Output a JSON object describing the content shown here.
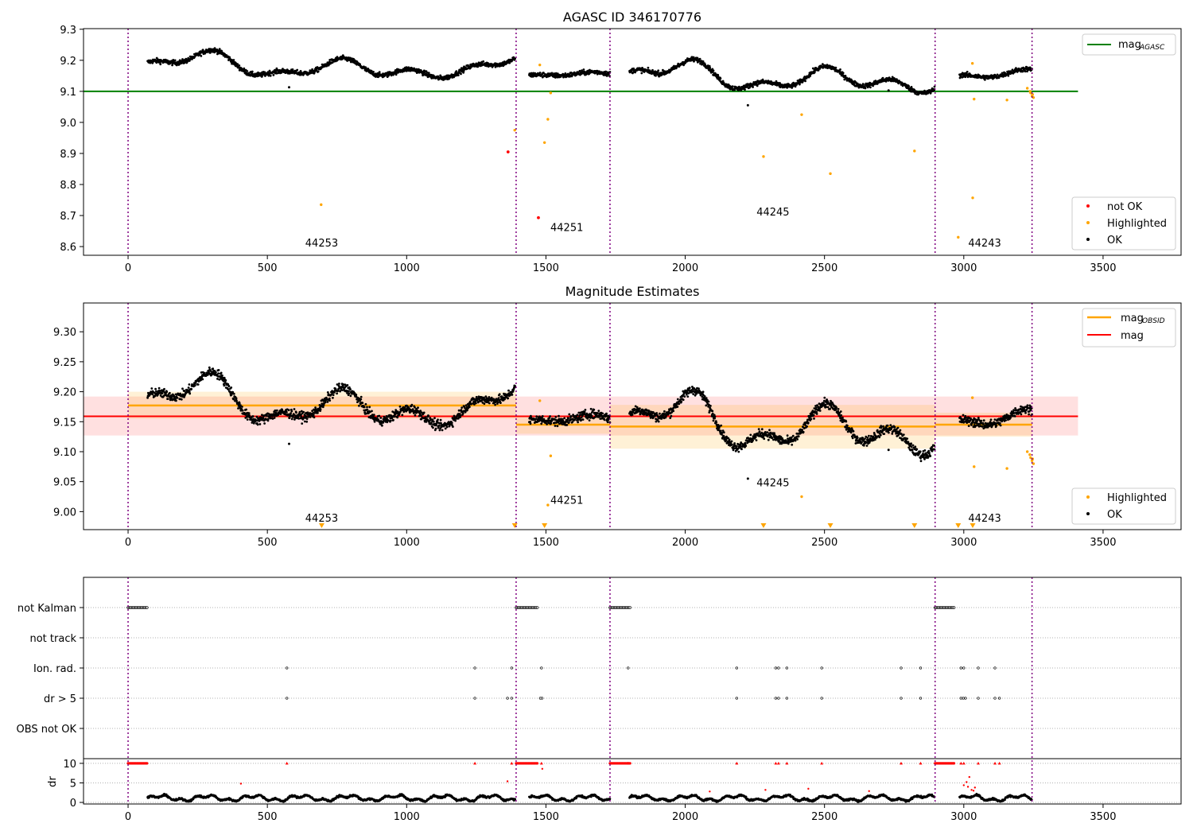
{
  "chart_data": [
    {
      "type": "scatter",
      "title": "AGASC ID 346170776",
      "xlim": [
        -160,
        3780
      ],
      "ylim": [
        8.572,
        9.302
      ],
      "xticks": [
        0,
        500,
        1000,
        1500,
        2000,
        2500,
        3000,
        3500
      ],
      "yticks": [
        8.6,
        8.7,
        8.8,
        8.9,
        9.0,
        9.1,
        9.2,
        9.3
      ],
      "grid": false,
      "legend_upper": {
        "placement": "top-right",
        "entries": [
          {
            "name": "mag",
            "sub": "AGASC",
            "color": "#008000"
          }
        ]
      },
      "legend_lower": {
        "placement": "bottom-right",
        "entries": [
          {
            "name": "not OK",
            "color": "#ff0000"
          },
          {
            "name": "Highlighted",
            "color": "#ffa500"
          },
          {
            "name": "OK",
            "color": "#000000"
          }
        ]
      },
      "hline": {
        "y": 9.1,
        "x": [
          -160,
          3410
        ],
        "color": "#008000"
      },
      "obsid_boundaries": [
        0,
        1393,
        1730,
        2897,
        3245
      ],
      "obsid_labels": [
        {
          "text": "44253",
          "x": 695,
          "y": 8.6
        },
        {
          "text": "44251",
          "x": 1575,
          "y": 8.65
        },
        {
          "text": "44245",
          "x": 2315,
          "y": 8.7
        },
        {
          "text": "44243",
          "x": 3075,
          "y": 8.6
        }
      ],
      "ok_segments": [
        {
          "x": [
            70,
            1390
          ],
          "mean": 9.178,
          "wave": [
            0.04,
            0.03,
            0.032,
            0.025
          ]
        },
        {
          "x": [
            1440,
            1730
          ],
          "mean": 9.147,
          "wave": [
            0.012,
            0.01,
            0.008,
            0.006
          ]
        },
        {
          "x": [
            1800,
            2895
          ],
          "mean": 9.142,
          "wave": [
            0.05,
            0.04,
            0.03,
            0.02
          ]
        },
        {
          "x": [
            2985,
            3245
          ],
          "mean": 9.148,
          "wave": [
            0.012,
            0.015,
            0.008,
            0.02
          ]
        }
      ],
      "ok_outliers": [
        [
          578,
          9.113
        ],
        [
          2225,
          9.055
        ],
        [
          2730,
          9.103
        ]
      ],
      "not_ok_points": [
        [
          1364,
          8.905
        ],
        [
          1473,
          8.693
        ]
      ],
      "highlighted_points": [
        [
          693,
          8.735
        ],
        [
          1388,
          8.975
        ],
        [
          1478,
          9.185
        ],
        [
          1495,
          8.935
        ],
        [
          1507,
          9.01
        ],
        [
          1517,
          9.095
        ],
        [
          2281,
          8.89
        ],
        [
          2418,
          9.025
        ],
        [
          2521,
          8.835
        ],
        [
          2823,
          8.908
        ],
        [
          2980,
          8.63
        ],
        [
          3032,
          8.757
        ],
        [
          3037,
          9.075
        ],
        [
          3031,
          9.19
        ],
        [
          3155,
          9.072
        ],
        [
          3228,
          9.11
        ],
        [
          3240,
          9.095
        ],
        [
          3245,
          9.085
        ],
        [
          3250,
          9.08
        ],
        [
          3238,
          9.1
        ],
        [
          3247,
          9.09
        ]
      ]
    },
    {
      "type": "scatter",
      "title": "Magnitude Estimates",
      "xlim": [
        -160,
        3780
      ],
      "ylim": [
        8.97,
        9.348
      ],
      "xticks": [
        0,
        500,
        1000,
        1500,
        2000,
        2500,
        3000,
        3500
      ],
      "yticks": [
        9.0,
        9.05,
        9.1,
        9.15,
        9.2,
        9.25,
        9.3
      ],
      "ytick_labels": [
        "9.00",
        "9.05",
        "9.10",
        "9.15",
        "9.20",
        "9.25",
        "9.30"
      ],
      "grid": false,
      "legend_upper": {
        "placement": "top-right",
        "entries": [
          {
            "name": "mag",
            "sub": "OBSID",
            "color": "#ffa500"
          },
          {
            "name": "mag",
            "sub": "",
            "color": "#ff0000"
          }
        ]
      },
      "legend_lower": {
        "placement": "bottom-right",
        "entries": [
          {
            "name": "Highlighted",
            "color": "#ffa500"
          },
          {
            "name": "OK",
            "color": "#000000"
          }
        ]
      },
      "mag": {
        "value": 9.159,
        "band": [
          9.127,
          9.192
        ],
        "x": [
          -160,
          3410
        ],
        "color": "#ff0000"
      },
      "mag_obsid": [
        {
          "x": [
            0,
            1393
          ],
          "value": 9.177,
          "band": [
            9.155,
            9.2
          ]
        },
        {
          "x": [
            1393,
            1730
          ],
          "value": 9.145,
          "band": [
            9.13,
            9.16
          ]
        },
        {
          "x": [
            1730,
            2897
          ],
          "value": 9.142,
          "band": [
            9.105,
            9.178
          ]
        },
        {
          "x": [
            2897,
            3245
          ],
          "value": 9.145,
          "band": [
            9.125,
            9.165
          ]
        }
      ],
      "obsid_boundaries": [
        0,
        1393,
        1730,
        2897,
        3245
      ],
      "obsid_labels": [
        {
          "text": "44253",
          "x": 695,
          "y": 8.983
        },
        {
          "text": "44251",
          "x": 1575,
          "y": 9.013
        },
        {
          "text": "44245",
          "x": 2315,
          "y": 9.042
        },
        {
          "text": "44243",
          "x": 3075,
          "y": 8.983
        }
      ],
      "ok_segments": [
        {
          "x": [
            70,
            1390
          ],
          "mean": 9.178,
          "wave": [
            0.04,
            0.03,
            0.032,
            0.025
          ]
        },
        {
          "x": [
            1440,
            1730
          ],
          "mean": 9.147,
          "wave": [
            0.012,
            0.01,
            0.008,
            0.006
          ]
        },
        {
          "x": [
            1800,
            2895
          ],
          "mean": 9.142,
          "wave": [
            0.05,
            0.04,
            0.03,
            0.02
          ]
        },
        {
          "x": [
            2985,
            3245
          ],
          "mean": 9.148,
          "wave": [
            0.012,
            0.015,
            0.008,
            0.02
          ]
        }
      ],
      "ok_outliers": [
        [
          578,
          9.113
        ],
        [
          2225,
          9.055
        ],
        [
          2730,
          9.103
        ]
      ],
      "highlighted_points": [
        [
          1478,
          9.185
        ],
        [
          1517,
          9.093
        ],
        [
          1507,
          9.011
        ],
        [
          2418,
          9.025
        ],
        [
          3031,
          9.19
        ],
        [
          3037,
          9.075
        ],
        [
          3155,
          9.072
        ],
        [
          3228,
          9.1
        ],
        [
          3240,
          9.09
        ],
        [
          3245,
          9.085
        ],
        [
          3250,
          9.08
        ],
        [
          3237,
          9.095
        ],
        [
          3247,
          9.088
        ]
      ],
      "offscale_markers": [
        695,
        1388,
        1495,
        2281,
        2521,
        2823,
        2980,
        3032
      ]
    },
    {
      "type": "scatter",
      "xlim": [
        -160,
        3780
      ],
      "xticks": [
        0,
        500,
        1000,
        1500,
        2000,
        2500,
        3000,
        3500
      ],
      "flag_rows": [
        "not Kalman",
        "not track",
        "Ion. rad.",
        "dr > 5",
        "OBS not OK"
      ],
      "not_kalman_ranges": [
        [
          0,
          70
        ],
        [
          1393,
          1470
        ],
        [
          1730,
          1805
        ],
        [
          2897,
          2965
        ]
      ],
      "ion_rad_x": [
        570,
        1245,
        1377,
        1484,
        1795,
        2185,
        2325,
        2335,
        2365,
        2490,
        2775,
        2845,
        2990,
        3000,
        3052,
        3112
      ],
      "dr5_x": [
        570,
        1245,
        1362,
        1377,
        1480,
        1486,
        2185,
        2325,
        2335,
        2365,
        2490,
        2775,
        2845,
        2990,
        2998,
        3006,
        3052,
        3112,
        3128
      ],
      "dr": {
        "ylabel": "dr",
        "ylim": [
          -0.4,
          11.2
        ],
        "yticks": [
          0,
          5,
          10
        ],
        "cap": 10,
        "clip_ranges": [
          [
            0,
            70
          ],
          [
            1393,
            1470
          ],
          [
            1730,
            1805
          ],
          [
            2897,
            2965
          ]
        ],
        "clip_points": [
          570,
          1245,
          1377,
          1484,
          1795,
          2185,
          2325,
          2335,
          2365,
          2490,
          2775,
          2845,
          2990,
          3000,
          3052,
          3112,
          3128
        ],
        "red_points": [
          [
            405,
            4.8
          ],
          [
            1362,
            5.4
          ],
          [
            1487,
            8.6
          ],
          [
            2288,
            3.2
          ],
          [
            2442,
            3.5
          ],
          [
            2088,
            2.8
          ],
          [
            2660,
            2.9
          ],
          [
            3010,
            5.2
          ],
          [
            3020,
            6.5
          ],
          [
            3028,
            3.2
          ],
          [
            3040,
            3.8
          ],
          [
            3000,
            4.4
          ],
          [
            3035,
            3.0
          ],
          [
            3015,
            4.0
          ]
        ],
        "ok_segments": [
          [
            70,
            1390
          ],
          [
            1440,
            1730
          ],
          [
            1800,
            2895
          ],
          [
            2985,
            3245
          ]
        ]
      }
    }
  ]
}
